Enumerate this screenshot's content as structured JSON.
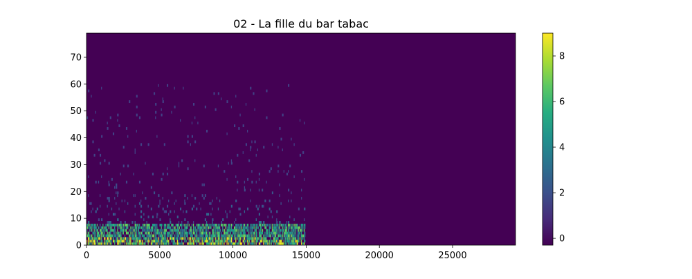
{
  "chart_data": {
    "type": "heatmap",
    "title": "02 - La fille du bar tabac",
    "xlabel": "",
    "ylabel": "",
    "xlim": [
      0,
      29300
    ],
    "ylim": [
      0,
      79
    ],
    "x_ticks": [
      0,
      5000,
      10000,
      15000,
      20000,
      25000
    ],
    "y_ticks": [
      0,
      10,
      20,
      30,
      40,
      50,
      60,
      70
    ],
    "colorbar": {
      "colormap": "viridis",
      "range": [
        -0.3,
        9
      ],
      "ticks": [
        0,
        2,
        4,
        6,
        8
      ]
    },
    "signal_end_x": 14950,
    "background_value": -0.3,
    "colors": {
      "low": "#440154",
      "high": "#fde725"
    }
  }
}
